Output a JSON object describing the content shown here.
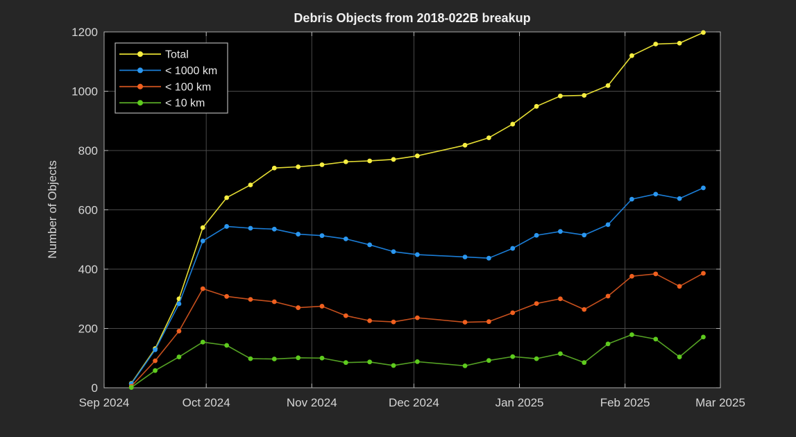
{
  "window": {
    "kind": "figure-plot",
    "background": "#262626"
  },
  "chart_data": {
    "type": "line",
    "title": "Debris Objects from 2018-022B breakup",
    "xlabel": "",
    "ylabel": "Number of Objects",
    "ylim": [
      0,
      1200
    ],
    "grid": true,
    "legend_position": "top-left",
    "x_dates": [
      "2024-09-09",
      "2024-09-16",
      "2024-09-23",
      "2024-09-30",
      "2024-10-07",
      "2024-10-14",
      "2024-10-21",
      "2024-10-28",
      "2024-11-04",
      "2024-11-11",
      "2024-11-18",
      "2024-11-25",
      "2024-12-02",
      "2024-12-16",
      "2024-12-23",
      "2024-12-30",
      "2025-01-06",
      "2025-01-13",
      "2025-01-20",
      "2025-01-27",
      "2025-02-03",
      "2025-02-10",
      "2025-02-17",
      "2025-02-24"
    ],
    "x_days_since_sep1": [
      8,
      15,
      22,
      29,
      36,
      43,
      50,
      57,
      64,
      71,
      78,
      85,
      92,
      106,
      113,
      120,
      127,
      134,
      141,
      148,
      155,
      162,
      169,
      176
    ],
    "x_tick_labels": [
      "Sep 2024",
      "Oct 2024",
      "Nov 2024",
      "Dec 2024",
      "Jan 2025",
      "Feb 2025",
      "Mar 2025"
    ],
    "x_tick_days": [
      0,
      30,
      61,
      91,
      122,
      153,
      181
    ],
    "y_ticks": [
      0,
      200,
      400,
      600,
      800,
      1000,
      1200
    ],
    "series": [
      {
        "name": "Total",
        "line_color": "#e6de33",
        "marker_color": "#f6ee42",
        "values": [
          15,
          132,
          300,
          540,
          641,
          684,
          741,
          745,
          752,
          762,
          765,
          770,
          782,
          818,
          843,
          889,
          949,
          984,
          986,
          1019,
          1120,
          1159,
          1162,
          1198
        ]
      },
      {
        "name": "< 1000 km",
        "line_color": "#1b7ed8",
        "marker_color": "#2b97f0",
        "values": [
          13,
          128,
          283,
          495,
          544,
          538,
          535,
          518,
          513,
          502,
          482,
          459,
          449,
          441,
          437,
          470,
          514,
          527,
          515,
          550,
          636,
          653,
          638,
          674
        ]
      },
      {
        "name": "< 100 km",
        "line_color": "#c8501d",
        "marker_color": "#f0601f",
        "values": [
          5,
          91,
          191,
          334,
          308,
          298,
          290,
          270,
          275,
          243,
          226,
          222,
          236,
          221,
          223,
          253,
          284,
          300,
          264,
          309,
          376,
          384,
          342,
          386
        ]
      },
      {
        "name": "< 10 km",
        "line_color": "#55a324",
        "marker_color": "#5ecb1e",
        "values": [
          1,
          58,
          104,
          154,
          143,
          98,
          97,
          101,
          100,
          85,
          87,
          75,
          88,
          74,
          92,
          105,
          98,
          115,
          85,
          148,
          179,
          164,
          104,
          171
        ]
      }
    ]
  },
  "theme": {
    "figure_bg": "#262626",
    "plot_bg": "#000000",
    "grid_color": "#4a4a4a",
    "spine_color": "#a9a9a9",
    "tick_color": "#b8b8b8",
    "tick_label_color": "#d6d6d6",
    "title_color": "#f0f0f0",
    "legend_bg": "#000000",
    "legend_border": "#b3b3b3",
    "legend_text_color": "#e8e8e8"
  }
}
